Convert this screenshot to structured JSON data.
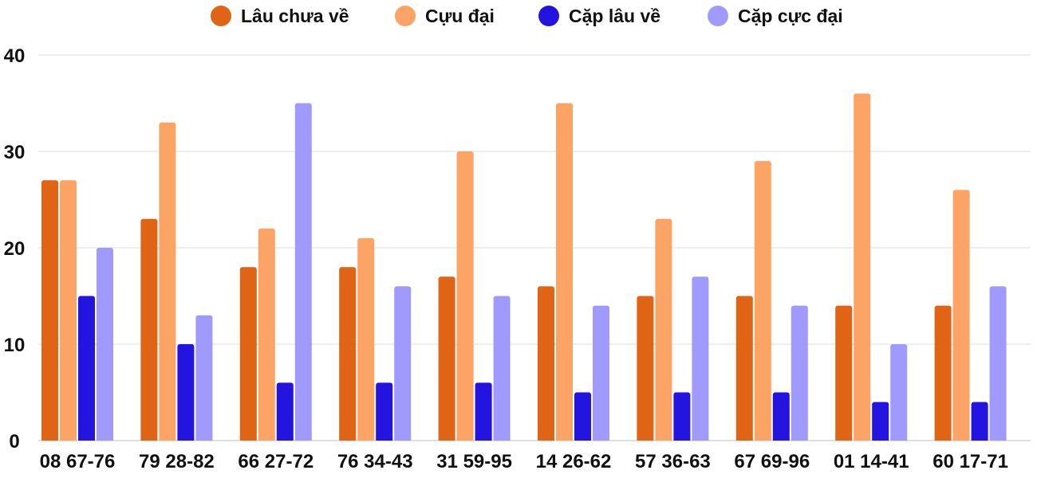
{
  "chart_data": {
    "type": "bar",
    "title": "",
    "xlabel": "",
    "ylabel": "",
    "ylim": [
      0,
      40
    ],
    "yticks": [
      0,
      10,
      20,
      30,
      40
    ],
    "grid": true,
    "legend_position": "top-center",
    "categories": [
      "08 67-76",
      "79 28-82",
      "66 27-72",
      "76 34-43",
      "31 59-95",
      "14 26-62",
      "57 36-63",
      "67 69-96",
      "01 14-41",
      "60 17-71"
    ],
    "series": [
      {
        "name": "Lâu chưa về",
        "color": "#e06416",
        "values": [
          27,
          23,
          18,
          18,
          17,
          16,
          15,
          15,
          14,
          14
        ]
      },
      {
        "name": "Cựu đại",
        "color": "#fba465",
        "values": [
          27,
          33,
          22,
          21,
          30,
          35,
          23,
          29,
          36,
          26
        ]
      },
      {
        "name": "Cặp lâu về",
        "color": "#2414e0",
        "values": [
          15,
          10,
          6,
          6,
          6,
          5,
          5,
          5,
          4,
          4
        ]
      },
      {
        "name": "Cặp cực đại",
        "color": "#a09afc",
        "values": [
          20,
          13,
          35,
          16,
          15,
          14,
          17,
          14,
          10,
          16
        ]
      }
    ]
  }
}
